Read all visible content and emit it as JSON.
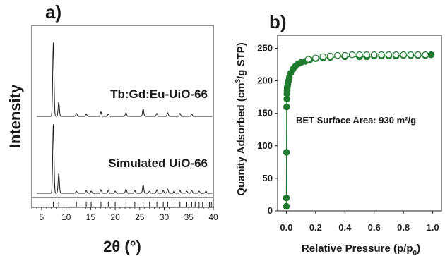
{
  "chart_data": [
    {
      "panel_label": "a)",
      "type": "line",
      "xlabel": "2θ (°)",
      "ylabel": "Intensity",
      "xlim": [
        3,
        40
      ],
      "x_ticks": [
        5,
        10,
        15,
        20,
        25,
        30,
        35,
        40
      ],
      "y_ticks_shown": false,
      "grid": false,
      "series": [
        {
          "name": "Tb:Gd:Eu-UiO-66",
          "peaks": [
            {
              "x": 7.4,
              "rel_intensity": 1.0
            },
            {
              "x": 8.5,
              "rel_intensity": 0.19
            },
            {
              "x": 12.1,
              "rel_intensity": 0.04
            },
            {
              "x": 14.1,
              "rel_intensity": 0.03
            },
            {
              "x": 17.1,
              "rel_intensity": 0.06
            },
            {
              "x": 18.6,
              "rel_intensity": 0.03
            },
            {
              "x": 22.2,
              "rel_intensity": 0.05
            },
            {
              "x": 25.7,
              "rel_intensity": 0.1
            },
            {
              "x": 28.5,
              "rel_intensity": 0.04
            },
            {
              "x": 30.7,
              "rel_intensity": 0.05
            },
            {
              "x": 33.2,
              "rel_intensity": 0.04
            },
            {
              "x": 35.6,
              "rel_intensity": 0.03
            }
          ]
        },
        {
          "name": "Simulated UiO-66",
          "peaks": [
            {
              "x": 7.4,
              "rel_intensity": 1.0
            },
            {
              "x": 8.5,
              "rel_intensity": 0.28
            },
            {
              "x": 12.1,
              "rel_intensity": 0.03
            },
            {
              "x": 14.1,
              "rel_intensity": 0.04
            },
            {
              "x": 15.1,
              "rel_intensity": 0.03
            },
            {
              "x": 17.1,
              "rel_intensity": 0.05
            },
            {
              "x": 18.6,
              "rel_intensity": 0.04
            },
            {
              "x": 20.0,
              "rel_intensity": 0.03
            },
            {
              "x": 22.2,
              "rel_intensity": 0.06
            },
            {
              "x": 24.0,
              "rel_intensity": 0.04
            },
            {
              "x": 25.7,
              "rel_intensity": 0.12
            },
            {
              "x": 27.0,
              "rel_intensity": 0.03
            },
            {
              "x": 28.5,
              "rel_intensity": 0.05
            },
            {
              "x": 29.8,
              "rel_intensity": 0.04
            },
            {
              "x": 30.7,
              "rel_intensity": 0.06
            },
            {
              "x": 32.0,
              "rel_intensity": 0.03
            },
            {
              "x": 33.2,
              "rel_intensity": 0.04
            },
            {
              "x": 34.6,
              "rel_intensity": 0.03
            },
            {
              "x": 35.6,
              "rel_intensity": 0.04
            },
            {
              "x": 37.1,
              "rel_intensity": 0.03
            },
            {
              "x": 38.5,
              "rel_intensity": 0.03
            }
          ]
        }
      ],
      "reflection_ticks": [
        7.4,
        8.5,
        12.1,
        14.1,
        15.1,
        17.1,
        18.6,
        20.0,
        22.2,
        24.0,
        25.7,
        27.0,
        28.5,
        29.8,
        30.7,
        32.0,
        33.2,
        34.6,
        35.6,
        36.3,
        37.1,
        37.8,
        38.5,
        39.2,
        39.6,
        39.9
      ]
    },
    {
      "panel_label": "b)",
      "type": "scatter",
      "xlabel": "Relative Pressure (p/p0)",
      "xlabel_main": "Relative Pressure (p/p",
      "xlabel_sub": "0",
      "xlabel_close": ")",
      "ylabel": "Quanity Adsorbed (cm3/g STP)",
      "ylabel_main": "Quanity Adsorbed (cm",
      "ylabel_sup": "3",
      "ylabel_rest": "/g STP)",
      "xlim": [
        -0.06,
        1.06
      ],
      "ylim": [
        0,
        270
      ],
      "x_ticks": [
        0.0,
        0.2,
        0.4,
        0.6,
        0.8,
        1.0
      ],
      "x_tick_labels": [
        "0.0",
        "0.2",
        "0.4",
        "0.6",
        "0.8",
        "1.0"
      ],
      "y_ticks": [
        0,
        50,
        100,
        150,
        200,
        250
      ],
      "grid": false,
      "annotation": "BET Surface Area: 930 m²/g",
      "color": "#1f7a2e",
      "series": [
        {
          "name": "adsorption",
          "marker": "filled",
          "x": [
            0.0,
            0.0,
            0.001,
            0.002,
            0.003,
            0.004,
            0.005,
            0.006,
            0.008,
            0.01,
            0.015,
            0.02,
            0.03,
            0.045,
            0.06,
            0.08,
            0.1,
            0.13,
            0.16,
            0.2,
            0.25,
            0.3,
            0.4,
            0.5,
            0.55,
            0.6,
            0.65,
            0.7,
            0.75,
            0.8,
            0.85,
            0.9,
            0.95,
            0.99
          ],
          "y": [
            7,
            20,
            90,
            160,
            172,
            180,
            185,
            189,
            192,
            195,
            200,
            205,
            212,
            218,
            222,
            226,
            228,
            230,
            232,
            234,
            235,
            236,
            237,
            237,
            237,
            238,
            238,
            238,
            238,
            239,
            239,
            239,
            239,
            240
          ]
        },
        {
          "name": "desorption",
          "marker": "open",
          "x": [
            0.95,
            0.9,
            0.85,
            0.8,
            0.75,
            0.7,
            0.65,
            0.6,
            0.55,
            0.5,
            0.45,
            0.4,
            0.35,
            0.3,
            0.25,
            0.2,
            0.15
          ],
          "y": [
            240,
            240,
            240,
            240,
            240,
            240,
            240,
            240,
            240,
            240,
            240,
            239,
            239,
            238,
            237,
            235,
            233
          ]
        }
      ]
    }
  ]
}
